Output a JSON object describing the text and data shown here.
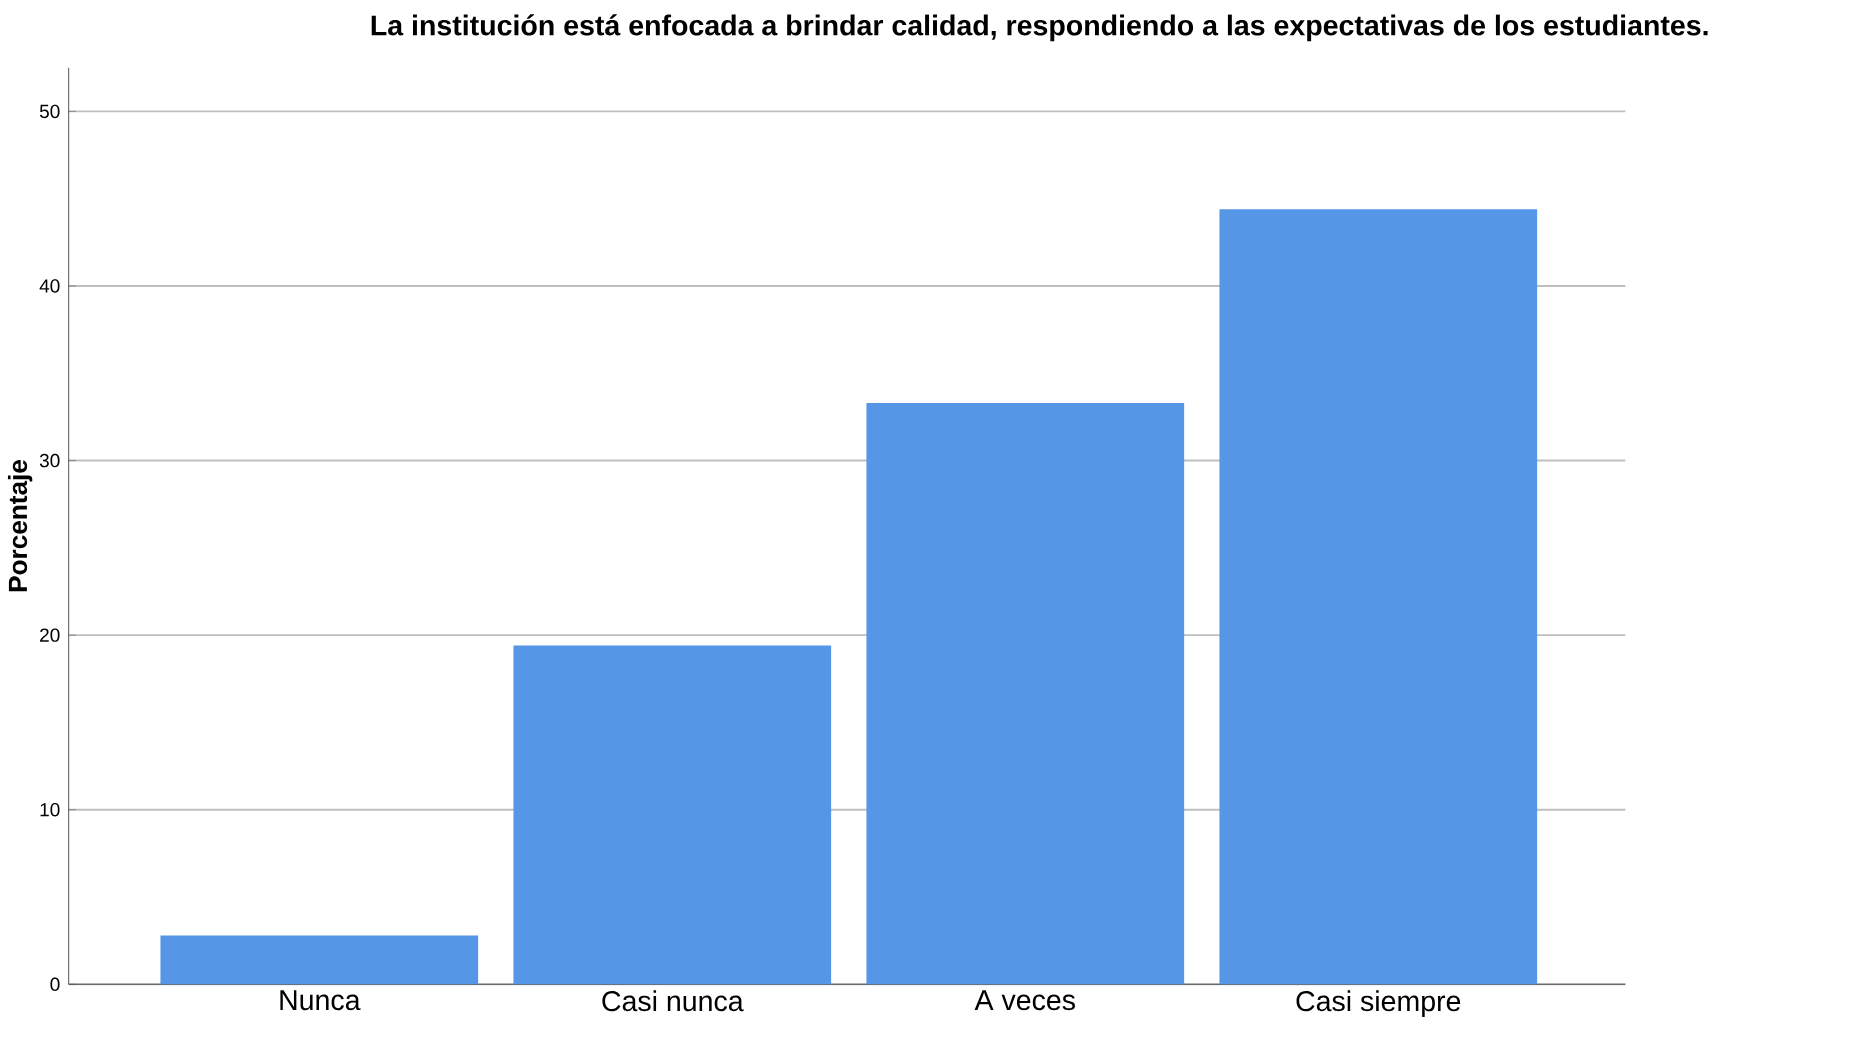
{
  "chart_data": {
    "type": "bar",
    "title": "La institución está enfocada a brindar calidad, respondiendo a las expectativas de los estudiantes.",
    "ylabel": "Porcentaje",
    "categories": [
      "Nunca",
      "Casi nunca",
      "A veces",
      "Casi siempre"
    ],
    "values": [
      2.8,
      19.4,
      33.3,
      44.4
    ],
    "color": "#5596e6",
    "ylim": [
      0,
      52.5
    ],
    "yticks": [
      0,
      10,
      20,
      30,
      40,
      50
    ],
    "grid": "y"
  }
}
